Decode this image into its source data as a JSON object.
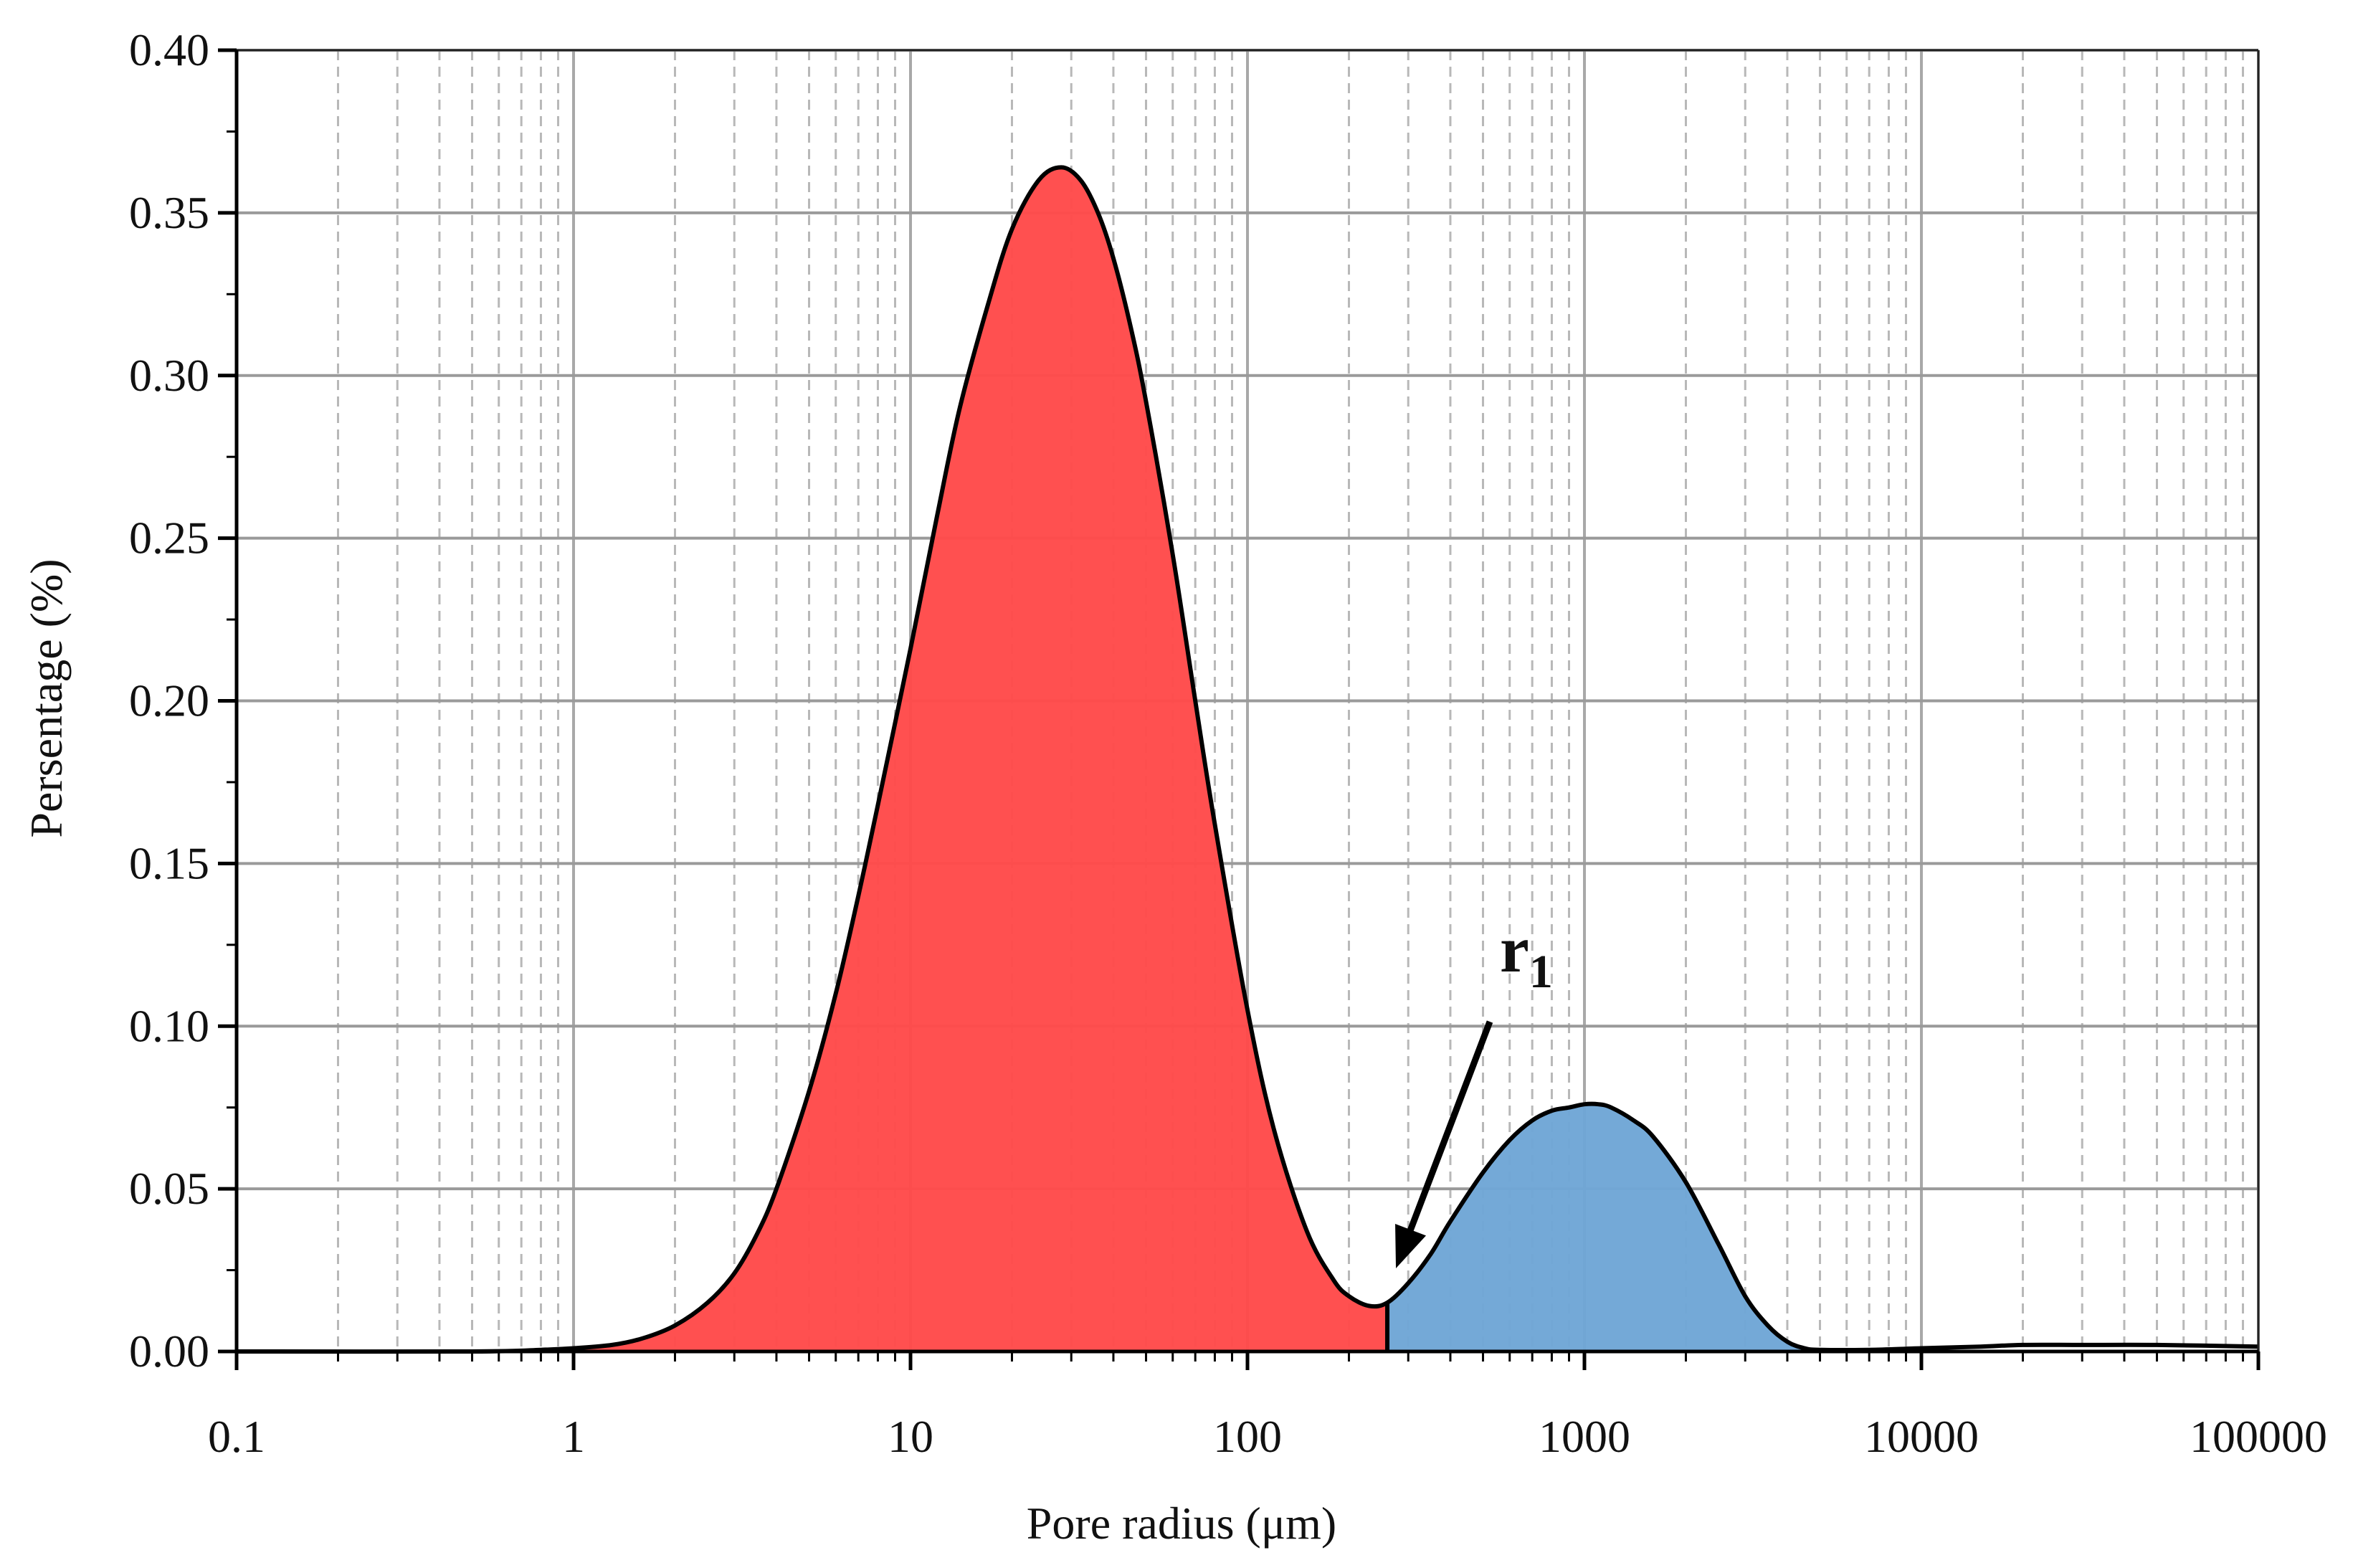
{
  "chart_data": {
    "type": "area",
    "xlabel": "Pore radius (μm)",
    "ylabel": "Persentage (%)",
    "x_scale": "log",
    "xlim": [
      0.1,
      100000
    ],
    "ylim": [
      0,
      0.4
    ],
    "x_ticks": [
      0.1,
      1,
      10,
      100,
      1000,
      10000,
      100000
    ],
    "x_tick_labels": [
      "0.1",
      "1",
      "10",
      "100",
      "1000",
      "10000",
      "100000"
    ],
    "y_ticks": [
      0,
      0.05,
      0.1,
      0.15,
      0.2,
      0.25,
      0.3,
      0.35,
      0.4
    ],
    "y_tick_labels": [
      "0.00",
      "0.05",
      "0.10",
      "0.15",
      "0.20",
      "0.25",
      "0.30",
      "0.35",
      "0.40"
    ],
    "grid": {
      "major": true,
      "minor": true,
      "minor_style": "dashed"
    },
    "series": [
      {
        "x": [
          0.1,
          0.5,
          0.8,
          1.0,
          1.3,
          1.6,
          2.0,
          2.5,
          3.0,
          3.5,
          4.0,
          5.0,
          6.0,
          7.0,
          8.0,
          10.0,
          12.0,
          14.0,
          17.0,
          20.0,
          24.0,
          28.0,
          32.0,
          36.0,
          40.0,
          45.0,
          50.0,
          60.0,
          70.0,
          80.0,
          100.0,
          120.0,
          150.0,
          180.0,
          200.0,
          230.0,
          260.0,
          300.0,
          350.0,
          400.0,
          500.0,
          600.0,
          700.0,
          800.0,
          900.0,
          1000.0,
          1100.0,
          1200.0,
          1400.0,
          1600.0,
          2000.0,
          2500.0,
          3000.0,
          3500.0,
          4000.0,
          4500.0,
          5000.0,
          7000.0,
          10000.0,
          15000.0,
          20000.0,
          30000.0,
          50000.0,
          100000.0
        ],
        "y": [
          0.0,
          0.0,
          0.0005,
          0.001,
          0.002,
          0.004,
          0.008,
          0.015,
          0.024,
          0.036,
          0.05,
          0.08,
          0.11,
          0.14,
          0.168,
          0.216,
          0.257,
          0.29,
          0.322,
          0.345,
          0.36,
          0.364,
          0.36,
          0.35,
          0.336,
          0.315,
          0.292,
          0.245,
          0.2,
          0.162,
          0.105,
          0.068,
          0.037,
          0.022,
          0.017,
          0.014,
          0.015,
          0.021,
          0.03,
          0.04,
          0.055,
          0.065,
          0.071,
          0.074,
          0.075,
          0.076,
          0.076,
          0.075,
          0.071,
          0.066,
          0.052,
          0.033,
          0.017,
          0.008,
          0.003,
          0.001,
          0.0005,
          0.0005,
          0.001,
          0.0015,
          0.002,
          0.002,
          0.002,
          0.0015
        ]
      }
    ],
    "regions": [
      {
        "x_range": [
          1.0,
          260.0
        ],
        "color": "#ff4a4a"
      },
      {
        "x_range": [
          260.0,
          4500.0
        ],
        "color": "#6fa6d6"
      }
    ],
    "annotation": {
      "text": "r",
      "subscript": "1",
      "x": 260.0,
      "y": 0.015
    }
  }
}
